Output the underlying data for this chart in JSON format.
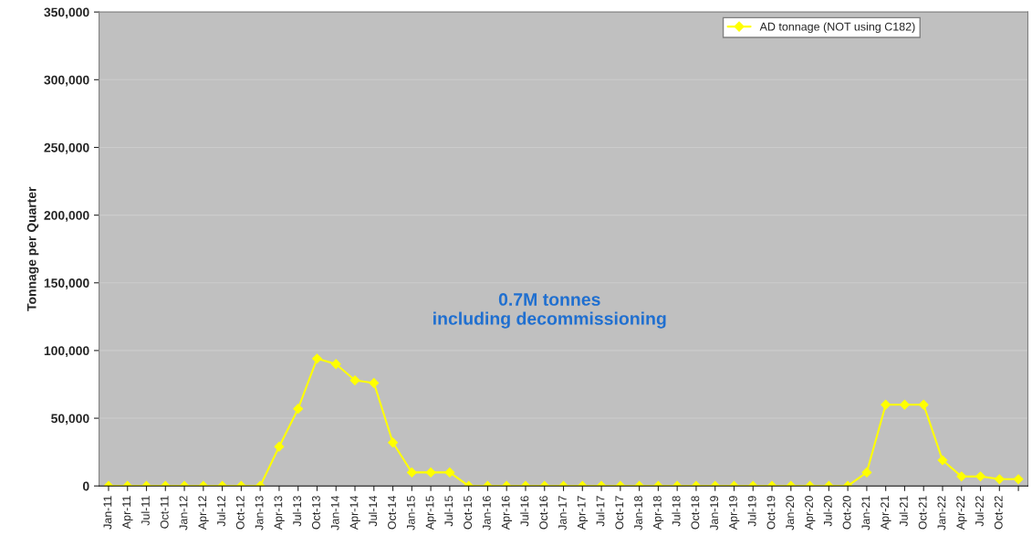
{
  "chart_data": {
    "type": "line",
    "ylabel": "Tonnage per Quarter",
    "categories": [
      "Jan-11",
      "Apr-11",
      "Jul-11",
      "Oct-11",
      "Jan-12",
      "Apr-12",
      "Jul-12",
      "Oct-12",
      "Jan-13",
      "Apr-13",
      "Jul-13",
      "Oct-13",
      "Jan-14",
      "Apr-14",
      "Jul-14",
      "Oct-14",
      "Jan-15",
      "Apr-15",
      "Jul-15",
      "Oct-15",
      "Jan-16",
      "Apr-16",
      "Jul-16",
      "Oct-16",
      "Jan-17",
      "Apr-17",
      "Jul-17",
      "Oct-17",
      "Jan-18",
      "Apr-18",
      "Jul-18",
      "Oct-18",
      "Jan-19",
      "Apr-19",
      "Jul-19",
      "Oct-19",
      "Jan-20",
      "Apr-20",
      "Jul-20",
      "Oct-20",
      "Jan-21",
      "Apr-21",
      "Jul-21",
      "Oct-21",
      "Jan-22",
      "Apr-22",
      "Jul-22",
      "Oct-22",
      null
    ],
    "series": [
      {
        "name": "AD tonnage (NOT using C182)",
        "color": "#ffff00",
        "values": [
          0,
          0,
          0,
          0,
          0,
          0,
          0,
          0,
          0,
          29000,
          57000,
          94000,
          90000,
          78000,
          76000,
          32000,
          10000,
          10000,
          10000,
          0,
          0,
          0,
          0,
          0,
          0,
          0,
          0,
          0,
          0,
          0,
          0,
          0,
          0,
          0,
          0,
          0,
          0,
          0,
          0,
          0,
          10000,
          60000,
          60000,
          60000,
          19000,
          7000,
          7000,
          5000,
          5000
        ]
      }
    ],
    "ylim": [
      0,
      350000
    ],
    "yticks": [
      {
        "value": 0,
        "label": "0"
      },
      {
        "value": 50000,
        "label": "50,000"
      },
      {
        "value": 100000,
        "label": "100,000"
      },
      {
        "value": 150000,
        "label": "150,000"
      },
      {
        "value": 200000,
        "label": "200,000"
      },
      {
        "value": 250000,
        "label": "250,000"
      },
      {
        "value": 300000,
        "label": "300,000"
      },
      {
        "value": 350000,
        "label": "350,000"
      }
    ],
    "annotations": [
      "0.7M tonnes\nincluding decommissioning"
    ],
    "grid": "y",
    "legend": "top right",
    "marker": "diamond",
    "line_style": "solid"
  }
}
